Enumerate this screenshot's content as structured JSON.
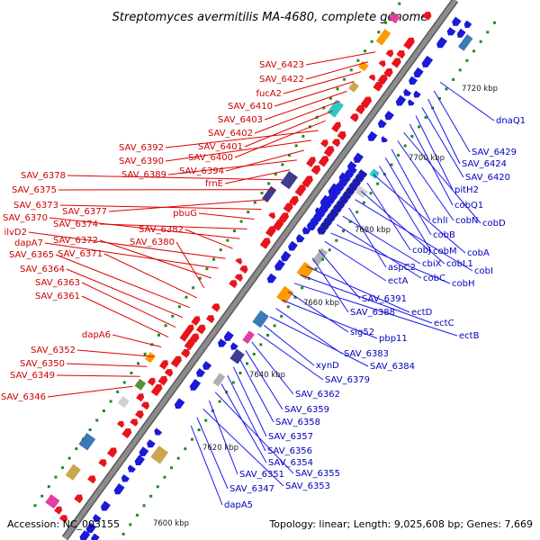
{
  "title": "Streptomyces avermitilis MA-4680, complete genome",
  "footer": {
    "accession": "Accession: NC_003155",
    "topology": "Topology: linear; Length: 9,025,608 bp; Genes: 7,669"
  },
  "scale_ticks": [
    "7600 kbp",
    "7620 kbp",
    "7640 kbp",
    "7660 kbp",
    "7680 kbp",
    "7700 kbp",
    "7720 kbp"
  ],
  "colors": {
    "forward": "#e8141c",
    "reverse": "#1a1ad8",
    "backbone": "#8c8c8c",
    "label_forward": "#cc0000",
    "label_reverse": "#0000bb"
  },
  "forward_labels": [
    "SAV_6423",
    "SAV_6422",
    "fucA2",
    "SAV_6410",
    "SAV_6403",
    "SAV_6402",
    "SAV_6401",
    "SAV_6400",
    "SAV_6392",
    "SAV_6390",
    "SAV_6394",
    "SAV_6389",
    "frnE",
    "SAV_6378",
    "SAV_6375",
    "SAV_6377",
    "SAV_6373",
    "pbuG",
    "SAV_6374",
    "SAV_6370",
    "SAV_6382",
    "ilvD2",
    "dapA7",
    "SAV_6372",
    "SAV_6380",
    "SAV_6371",
    "SAV_6365",
    "SAV_6364",
    "SAV_6363",
    "SAV_6361",
    "dapA6",
    "SAV_6352",
    "SAV_6350",
    "SAV_6349",
    "SAV_6346"
  ],
  "reverse_labels": [
    "dnaQ1",
    "SAV_6429",
    "SAV_6424",
    "SAV_6420",
    "pitH2",
    "cobQ1",
    "cobD",
    "cobN",
    "chlI",
    "cobB",
    "cobM",
    "cobA",
    "cobJ",
    "cobL1",
    "cobI",
    "aspC2",
    "cbiX",
    "cobC",
    "cobH",
    "ectA",
    "SAV_6391",
    "SAV_6388",
    "ectD",
    "ectC",
    "ectB",
    "sig52",
    "pbp11",
    "SAV_6383",
    "SAV_6384",
    "xynD",
    "SAV_6379",
    "SAV_6362",
    "SAV_6359",
    "SAV_6358",
    "SAV_6357",
    "SAV_6356",
    "SAV_6354",
    "SAV_6355",
    "SAV_6351",
    "SAV_6353",
    "SAV_6347",
    "dapA5"
  ]
}
